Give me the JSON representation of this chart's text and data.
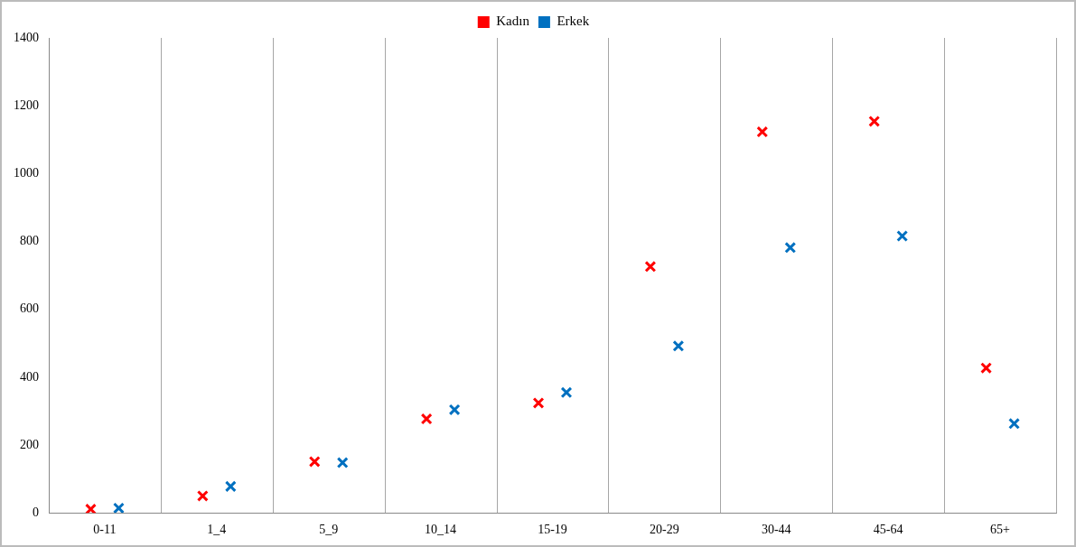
{
  "chart_data": {
    "type": "scatter",
    "categories": [
      "0-11",
      "1_4",
      "5_9",
      "10_14",
      "15-19",
      "20-29",
      "30-44",
      "45-64",
      "65+"
    ],
    "series": [
      {
        "name": "Kadın",
        "color": "#ff0000",
        "values": [
          11,
          50,
          151,
          277,
          324,
          726,
          1123,
          1154,
          427
        ]
      },
      {
        "name": "Erkek",
        "color": "#0070c0",
        "values": [
          14,
          78,
          148,
          304,
          355,
          492,
          782,
          816,
          263
        ]
      }
    ],
    "ylim": [
      0,
      1400
    ],
    "yticks": [
      0,
      200,
      400,
      600,
      800,
      1000,
      1200,
      1400
    ],
    "grid": "x",
    "legend": "top",
    "marker": "cross"
  }
}
